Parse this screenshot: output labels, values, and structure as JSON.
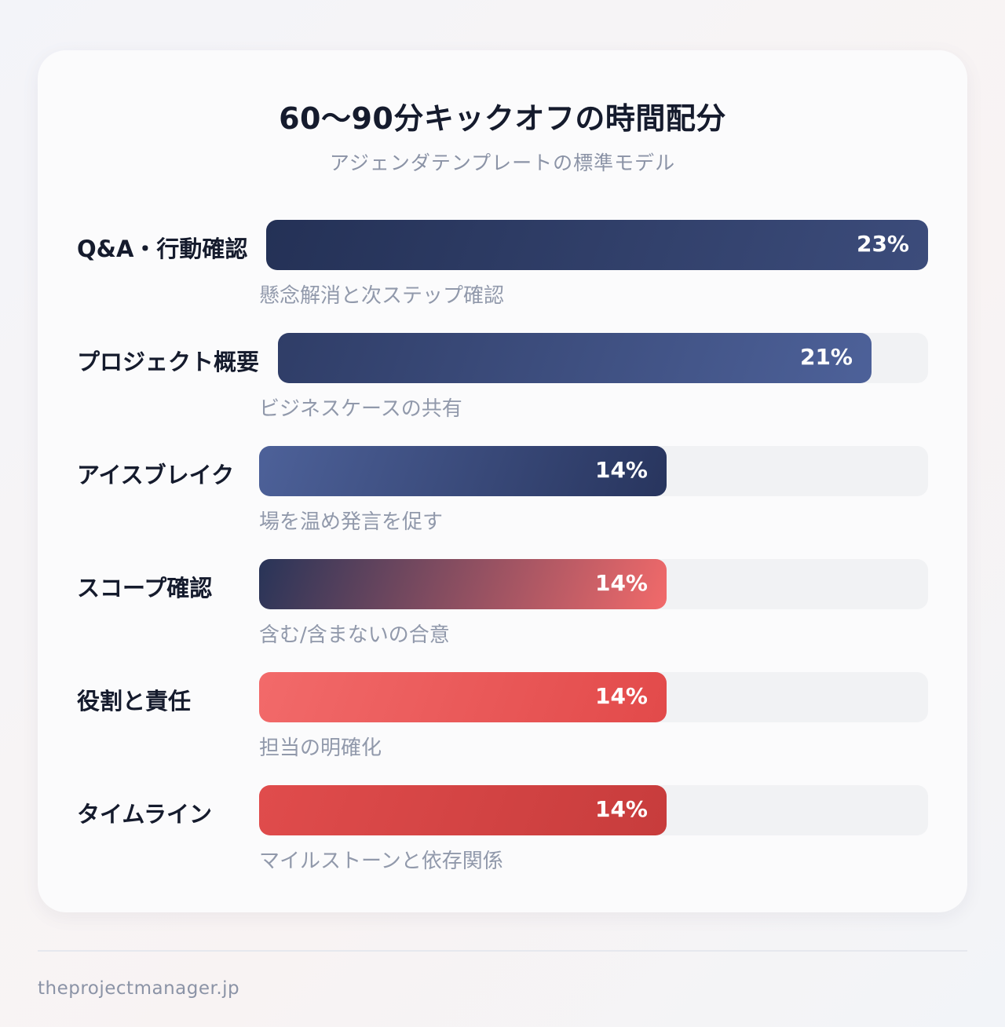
{
  "chart_data": {
    "type": "bar",
    "title": "60〜90分キックオフの時間配分",
    "subtitle": "アジェンダテンプレートの標準モデル",
    "categories": [
      "Q&A・行動確認",
      "プロジェクト概要",
      "アイスブレイク",
      "スコープ確認",
      "役割と責任",
      "タイムライン"
    ],
    "descriptions": [
      "懸念解消と次ステップ確認",
      "ビジネスケースの共有",
      "場を温め発言を促す",
      "含む/含まないの合意",
      "担当の明確化",
      "マイルストーンと依存関係"
    ],
    "values": [
      23,
      21,
      14,
      14,
      14,
      14
    ],
    "value_labels": [
      "23%",
      "21%",
      "14%",
      "14%",
      "14%",
      "14%"
    ],
    "unit": "%",
    "orientation": "horizontal",
    "xlim": [
      0,
      23
    ],
    "grid": false,
    "legend": "none",
    "bar_colors": [
      [
        "#243156",
        "#3c4c7b"
      ],
      [
        "#2f3d67",
        "#4d6199"
      ],
      [
        "#4d6199",
        "#28355e"
      ],
      [
        "#283458",
        "#f26a6a"
      ],
      [
        "#f26a6a",
        "#e24a4a"
      ],
      [
        "#e04c4c",
        "#c73c3c"
      ]
    ]
  },
  "footer": {
    "source": "theprojectmanager.jp"
  }
}
